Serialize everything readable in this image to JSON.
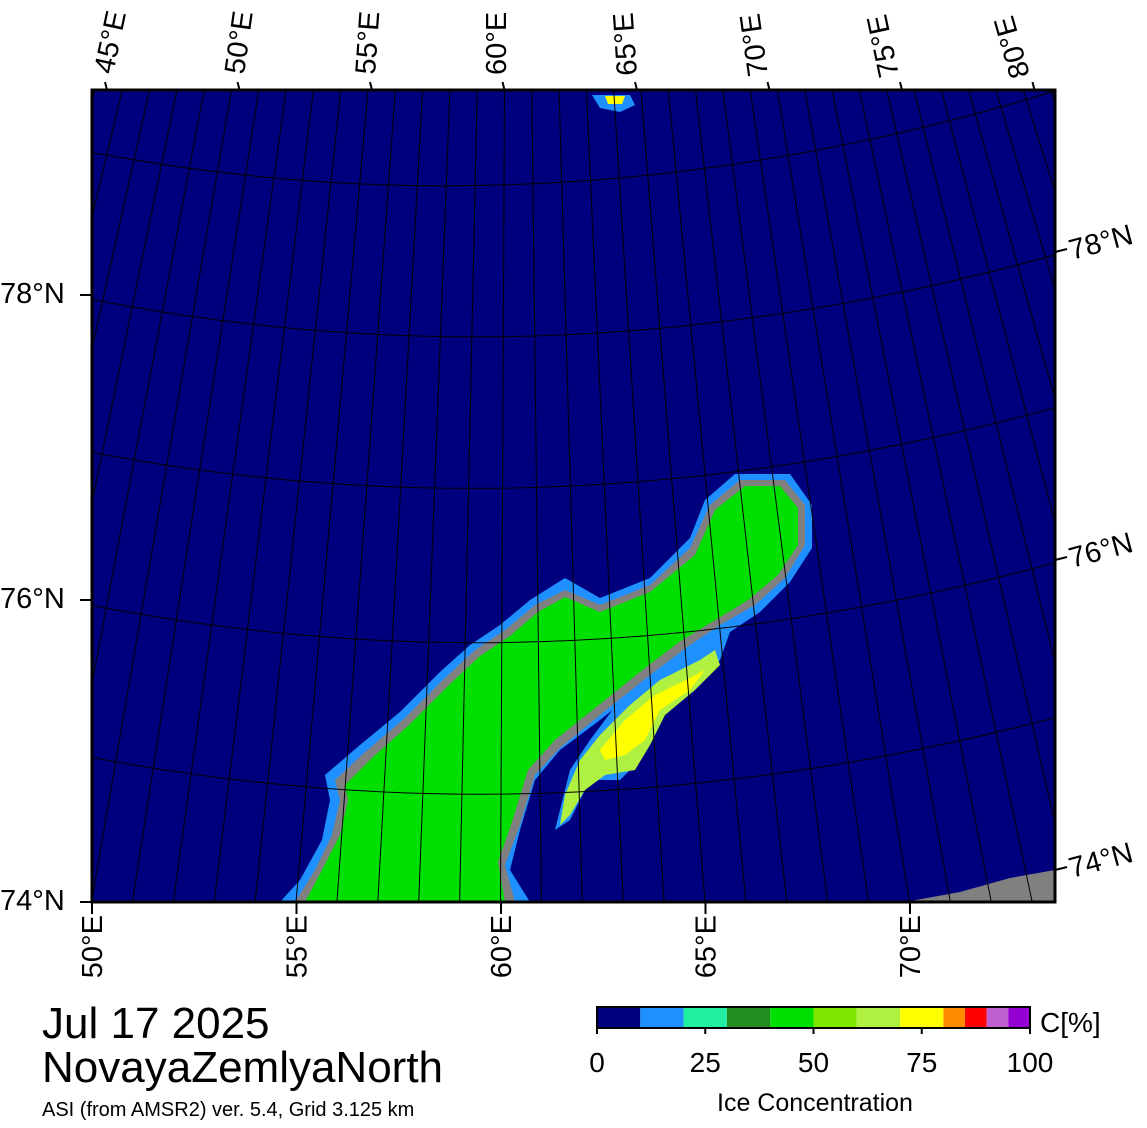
{
  "map": {
    "top_labels": [
      "45°E",
      "50°E",
      "55°E",
      "60°E",
      "65°E",
      "70°E",
      "75°E",
      "80°E"
    ],
    "left_labels": [
      "78°N",
      "76°N",
      "74°N"
    ],
    "right_labels": [
      "78°N",
      "76°N",
      "74°N"
    ],
    "bottom_labels": [
      "50°E",
      "55°E",
      "60°E",
      "65°E",
      "70°E"
    ]
  },
  "date": "Jul 17 2025",
  "region": "NovayaZemlyaNorth",
  "source": "ASI (from AMSR2) ver. 5.4,  Grid 3.125 km",
  "colorbar": {
    "unit": "C[%]",
    "label": "Ice Concentration",
    "range": [
      0,
      100
    ],
    "ticks": [
      0,
      25,
      50,
      75,
      100
    ],
    "bins": [
      0,
      10,
      20,
      30,
      40,
      50,
      60,
      70,
      80,
      85,
      90,
      95,
      100
    ],
    "colors": [
      "#00007f",
      "#1e90ff",
      "#20eea0",
      "#228b22",
      "#00e000",
      "#80e800",
      "#b0f040",
      "#ffff00",
      "#ff8c00",
      "#ff0000",
      "#c060d0",
      "#9400d3"
    ]
  }
}
